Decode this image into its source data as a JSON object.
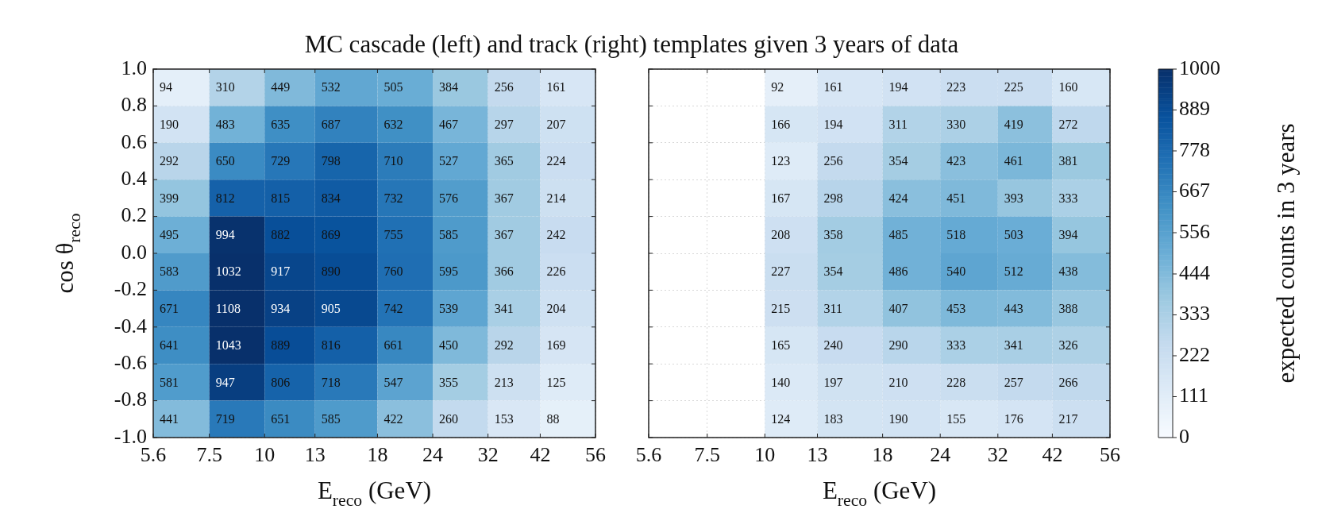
{
  "chart_data": [
    {
      "type": "heatmap",
      "title": "MC cascade (left) and track (right) templates given 3 years of data",
      "xlabel": "E$_{reco}$ (GeV)",
      "ylabel": "cos θ$_{reco}$",
      "log": "x",
      "grid": true,
      "data_labels": true,
      "xlim": [
        5.6,
        56
      ],
      "xticks": [
        5.6,
        7.5,
        10,
        13,
        18,
        24,
        32,
        42,
        56
      ],
      "ylim": [
        -1,
        1
      ],
      "yticks": [
        {
          "value": -1,
          "label": "-1.0"
        },
        -0.8,
        -0.6,
        -0.4,
        -0.2,
        {
          "value": 0,
          "label": "0.0"
        },
        0.2,
        0.4,
        0.6,
        0.8,
        {
          "value": 1,
          "label": "1.0"
        }
      ],
      "cells": [
        [
          94,
          310,
          449,
          532,
          505,
          384,
          256,
          161
        ],
        [
          190,
          483,
          635,
          687,
          632,
          467,
          297,
          207
        ],
        [
          292,
          650,
          729,
          798,
          710,
          527,
          365,
          224
        ],
        [
          399,
          812,
          815,
          834,
          732,
          576,
          367,
          214
        ],
        [
          495,
          994,
          882,
          869,
          755,
          585,
          367,
          242
        ],
        [
          583,
          1032,
          917,
          890,
          760,
          595,
          366,
          226
        ],
        [
          671,
          1108,
          934,
          905,
          742,
          539,
          341,
          204
        ],
        [
          641,
          1043,
          889,
          816,
          661,
          450,
          292,
          169
        ],
        [
          581,
          947,
          806,
          718,
          547,
          355,
          213,
          125
        ],
        [
          441,
          719,
          651,
          585,
          422,
          260,
          153,
          88
        ]
      ]
    },
    {
      "type": "heatmap",
      "xlabel": "E$_{reco}$ (GeV)",
      "log": "x",
      "grid": true,
      "data_labels": true,
      "tick_labels": "x",
      "xlim": [
        5.6,
        56
      ],
      "xticks": [
        5.6,
        7.5,
        10,
        13,
        18,
        24,
        32,
        42,
        56
      ],
      "ylim": [
        -1,
        1
      ],
      "yticks": [
        -1,
        -0.8,
        -0.6,
        -0.4,
        -0.2,
        0,
        0.2,
        0.4,
        0.6,
        0.8,
        1
      ],
      "clim": [
        0,
        1000
      ],
      "cticks": [
        0,
        111,
        222,
        333,
        444,
        556,
        667,
        778,
        889,
        1000
      ],
      "clabel": "expected counts in 3 years",
      "cells": [
        [
          null,
          null,
          92,
          161,
          194,
          223,
          225,
          160
        ],
        [
          null,
          null,
          166,
          194,
          311,
          330,
          419,
          272
        ],
        [
          null,
          null,
          123,
          256,
          354,
          423,
          461,
          381
        ],
        [
          null,
          null,
          167,
          298,
          424,
          451,
          393,
          333
        ],
        [
          null,
          null,
          208,
          358,
          485,
          518,
          503,
          394
        ],
        [
          null,
          null,
          227,
          354,
          486,
          540,
          512,
          438
        ],
        [
          null,
          null,
          215,
          311,
          407,
          453,
          443,
          388
        ],
        [
          null,
          null,
          165,
          240,
          290,
          333,
          341,
          326
        ],
        [
          null,
          null,
          140,
          197,
          210,
          228,
          257,
          266
        ],
        [
          null,
          null,
          124,
          183,
          190,
          155,
          176,
          217
        ]
      ]
    }
  ]
}
